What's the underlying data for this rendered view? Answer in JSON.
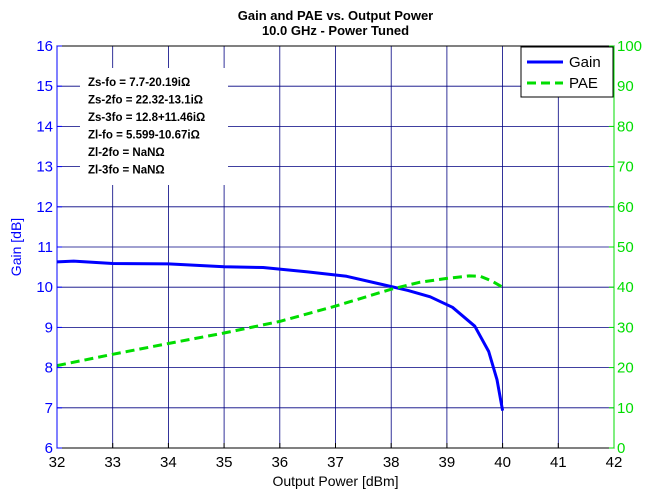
{
  "chart_data": {
    "type": "line",
    "title": [
      "Gain and PAE vs. Output Power",
      "10.0 GHz - Power Tuned"
    ],
    "xlabel": "Output Power [dBm]",
    "ylabel_left": "Gain [dB]",
    "ylabel_right": "",
    "xlim": [
      32,
      42
    ],
    "ylim_left": [
      6,
      16
    ],
    "ylim_right": [
      0,
      100
    ],
    "xticks": [
      32,
      33,
      34,
      35,
      36,
      37,
      38,
      39,
      40,
      41,
      42
    ],
    "yticks_left": [
      6,
      7,
      8,
      9,
      10,
      11,
      12,
      13,
      14,
      15,
      16
    ],
    "yticks_right": [
      0,
      10,
      20,
      30,
      40,
      50,
      60,
      70,
      80,
      90,
      100
    ],
    "grid": true,
    "legend_position": "top-right",
    "colors": {
      "gain": "#0000ff",
      "pae": "#00dd00",
      "grid": "#000080"
    },
    "series": [
      {
        "name": "Gain",
        "axis": "left",
        "style": "solid",
        "x": [
          32.0,
          32.3,
          33.0,
          34.0,
          35.0,
          35.7,
          36.5,
          37.2,
          37.8,
          38.3,
          38.7,
          39.1,
          39.5,
          39.75,
          39.9,
          40.0
        ],
        "y": [
          10.63,
          10.65,
          10.59,
          10.58,
          10.51,
          10.49,
          10.38,
          10.27,
          10.08,
          9.92,
          9.76,
          9.5,
          9.03,
          8.4,
          7.7,
          6.93
        ]
      },
      {
        "name": "PAE",
        "axis": "right",
        "style": "dashed",
        "x": [
          32.0,
          33.0,
          34.0,
          35.0,
          36.0,
          37.0,
          38.0,
          38.5,
          39.0,
          39.4,
          39.6,
          39.8,
          40.0
        ],
        "y": [
          20.5,
          23.3,
          26.0,
          28.6,
          31.5,
          35.3,
          39.5,
          41.2,
          42.2,
          42.8,
          42.7,
          41.6,
          40.0
        ]
      }
    ],
    "annotations": [
      "Zs-fo = 7.7-20.19iΩ",
      "Zs-2fo = 22.32-13.1iΩ",
      "Zs-3fo = 12.8+11.46iΩ",
      "Zl-fo = 5.599-10.67iΩ",
      "Zl-2fo = NaNΩ",
      "Zl-3fo = NaNΩ"
    ]
  }
}
